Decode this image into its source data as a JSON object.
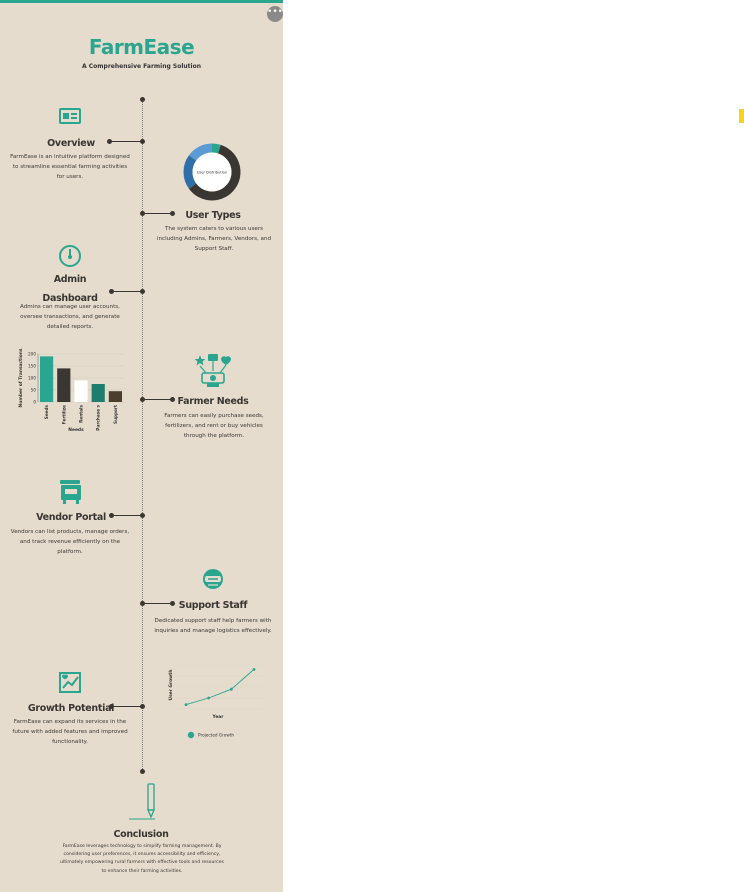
{
  "header": {
    "title": "FarmEase",
    "subtitle": "A Comprehensive Farming Solution",
    "menu_glyph": "•••"
  },
  "icons": [
    "monitor-icon",
    "gauge-icon",
    "farmer-needs-icon",
    "vendor-icon",
    "support-icon",
    "growth-icon",
    "pencil-icon"
  ],
  "colors": {
    "accent": "#2aa58f",
    "dark": "#3a3632",
    "panel": "#e5dccd",
    "blue": "#2f6ea6",
    "lightblue": "#5b9bd5"
  },
  "sections": {
    "overview": {
      "heading": "Overview",
      "text": "FarmEase is an intuitive platform designed to streamline essential farming activities for users."
    },
    "user_types": {
      "heading": "User Types",
      "text": "The system caters to various users including Admins, Farmers, Vendors, and Support Staff."
    },
    "admin": {
      "heading_line1": "Admin",
      "heading_line2": "Dashboard",
      "text": "Admins can manage user accounts, oversee transactions, and generate detailed reports."
    },
    "farmer": {
      "heading": "Farmer Needs",
      "text": "Farmers can easily purchase seeds, fertilizers, and rent or buy vehicles through the platform."
    },
    "vendor": {
      "heading": "Vendor Portal",
      "text": "Vendors can list products, manage orders, and track revenue efficiently on the platform."
    },
    "support": {
      "heading": "Support Staff",
      "text": "Dedicated support staff help farmers with inquiries and manage logistics effectively."
    },
    "growth": {
      "heading": "Growth Potential",
      "text": "FarmEase can expand its services in the future with added features and improved functionality."
    },
    "conclusion": {
      "heading": "Conclusion",
      "text": "FarmEase leverages technology to simplify farming management. By considering user preferences, it ensures accessibility and efficiency, ultimately empowering rural farmers with effective tools and resources to enhance their farming activities."
    }
  },
  "chart_data": [
    {
      "type": "pie",
      "title": "User Distribution",
      "donut": true,
      "slices": [
        {
          "value": 5,
          "color": "#2aa58f"
        },
        {
          "value": 60,
          "color": "#3a3632"
        },
        {
          "value": 20,
          "color": "#2f6ea6"
        },
        {
          "value": 15,
          "color": "#5b9bd5"
        }
      ]
    },
    {
      "type": "bar",
      "xlabel": "Needs",
      "ylabel": "Number of Transactions",
      "categories": [
        "Seeds",
        "Fertilizers",
        "Rentals",
        "Purchases",
        "Support"
      ],
      "tick_labels": [
        "Seeds",
        "Fertilize",
        "Rentals",
        "Purchase s",
        "Support"
      ],
      "values": [
        190,
        140,
        90,
        75,
        45
      ],
      "colors": [
        "#2aa58f",
        "#3a3632",
        "#ffffff",
        "#1e7d6c",
        "#4a3f2e"
      ],
      "yticks": [
        0,
        50,
        100,
        150,
        200
      ],
      "ylim": [
        0,
        200
      ]
    },
    {
      "type": "line",
      "xlabel": "Year",
      "ylabel": "User Growth",
      "series": [
        {
          "name": "Projected Growth",
          "values": [
            10,
            25,
            45,
            90
          ]
        }
      ],
      "ylim": [
        0,
        100
      ],
      "grid": true,
      "legend": "bottom"
    }
  ]
}
